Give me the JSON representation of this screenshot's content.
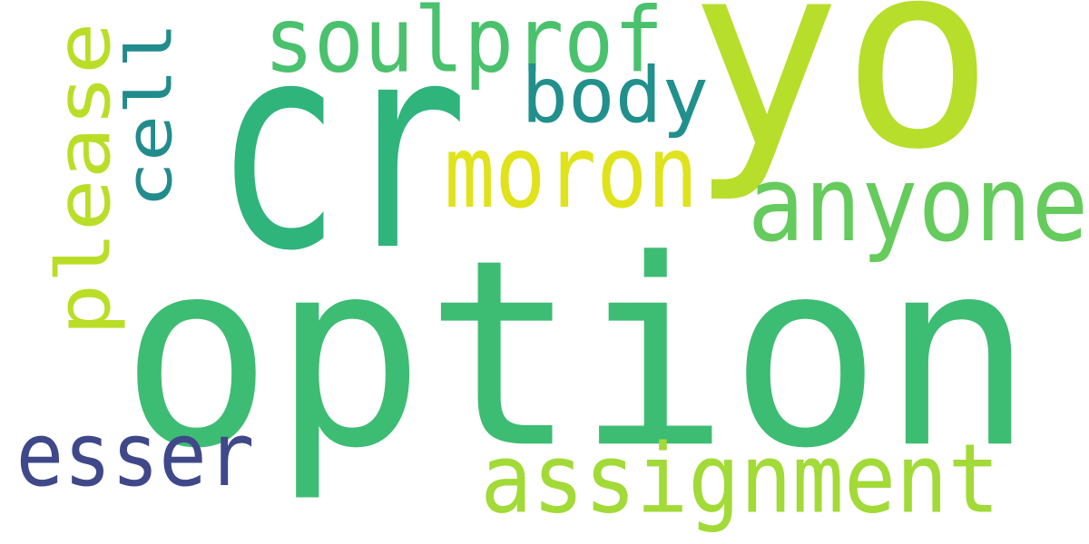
{
  "words": [
    {
      "text": "option",
      "color": "#3dbc73",
      "rotated": false
    },
    {
      "text": "cr",
      "color": "#2fb47c",
      "rotated": false
    },
    {
      "text": "yo",
      "color": "#b7de2a",
      "rotated": false
    },
    {
      "text": "anyone",
      "color": "#66cb5d",
      "rotated": false
    },
    {
      "text": "assignment",
      "color": "#a2da37",
      "rotated": false
    },
    {
      "text": "soulprof",
      "color": "#4ac16d",
      "rotated": false
    },
    {
      "text": "body",
      "color": "#21908d",
      "rotated": false
    },
    {
      "text": "moron",
      "color": "#e0e31b",
      "rotated": false
    },
    {
      "text": "esser",
      "color": "#3f4889",
      "rotated": false
    },
    {
      "text": "please",
      "color": "#bade28",
      "rotated": true
    },
    {
      "text": "cell",
      "color": "#228c8d",
      "rotated": true
    }
  ]
}
